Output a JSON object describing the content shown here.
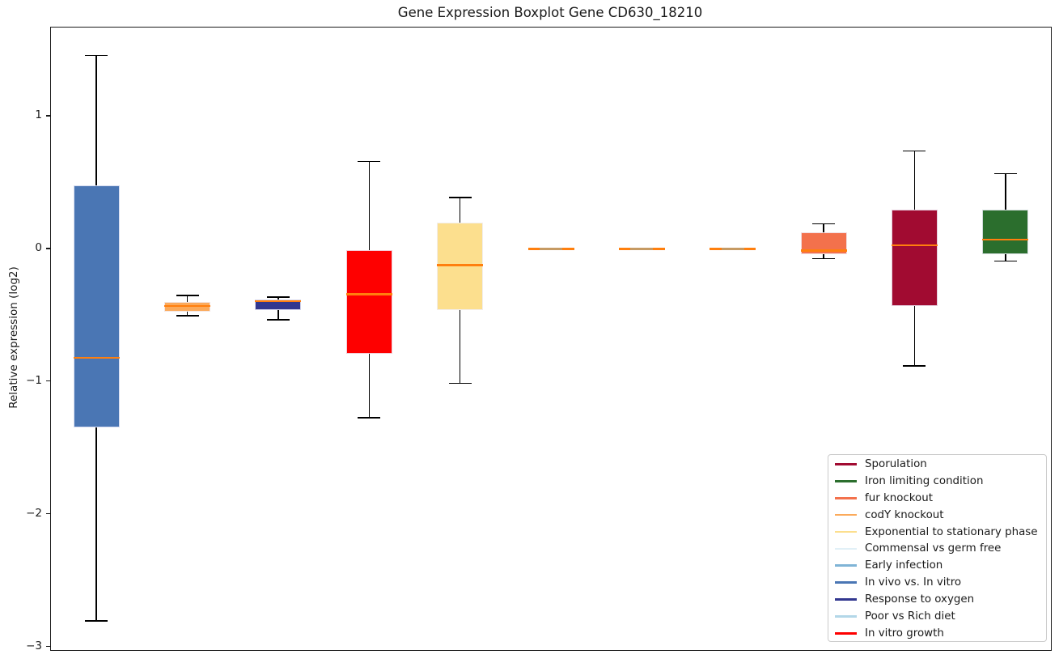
{
  "chart_data": {
    "type": "boxplot",
    "title": "Gene Expression Boxplot Gene CD630_18210",
    "ylabel": "Relative expression (log2)",
    "xlabel": "",
    "ylim": [
      -3.02,
      1.67
    ],
    "yticks": [
      {
        "value": 1,
        "label": "1"
      },
      {
        "value": 0,
        "label": "0"
      },
      {
        "value": -1,
        "label": "−1"
      },
      {
        "value": -2,
        "label": "−2"
      },
      {
        "value": -3,
        "label": "−3"
      }
    ],
    "grid": false,
    "legend_position": "lower right",
    "median_color": "#ff7f0e",
    "whisker_color": "#000000",
    "series": [
      {
        "name": "In vivo vs. In vitro",
        "color": "#4a76b4",
        "stats": {
          "whislo": -2.8,
          "q1": -1.34,
          "med": -0.82,
          "q3": 0.48,
          "whishi": 1.46
        }
      },
      {
        "name": "codY knockout",
        "color": "#fbaa5b",
        "stats": {
          "whislo": -0.5,
          "q1": -0.47,
          "med": -0.43,
          "q3": -0.4,
          "whishi": -0.35
        }
      },
      {
        "name": "Response to oxygen",
        "color": "#32378f",
        "stats": {
          "whislo": -0.53,
          "q1": -0.46,
          "med": -0.39,
          "q3": -0.38,
          "whishi": -0.36
        }
      },
      {
        "name": "In vitro growth",
        "color": "#fe0000",
        "stats": {
          "whislo": -1.27,
          "q1": -0.79,
          "med": -0.34,
          "q3": -0.01,
          "whishi": 0.66
        }
      },
      {
        "name": "Exponential to stationary phase",
        "color": "#fcdf8e",
        "stats": {
          "whislo": -1.01,
          "q1": -0.46,
          "med": -0.12,
          "q3": 0.2,
          "whishi": 0.39
        }
      },
      {
        "name": "Commensal vs germ free",
        "color": "#e1f0f7",
        "stats": {
          "whislo": -0.01,
          "q1": -0.005,
          "med": 0.0,
          "q3": 0.005,
          "whishi": 0.01
        }
      },
      {
        "name": "Early infection",
        "color": "#7fb4d6",
        "stats": {
          "whislo": -0.01,
          "q1": -0.005,
          "med": 0.0,
          "q3": 0.005,
          "whishi": 0.01
        }
      },
      {
        "name": "Poor vs Rich diet",
        "color": "#b3d7e8",
        "stats": {
          "whislo": -0.01,
          "q1": -0.005,
          "med": 0.0,
          "q3": 0.005,
          "whishi": 0.01
        }
      },
      {
        "name": "fur knockout",
        "color": "#f3714c",
        "stats": {
          "whislo": -0.07,
          "q1": -0.04,
          "med": -0.01,
          "q3": 0.13,
          "whishi": 0.19
        }
      },
      {
        "name": "Sporulation",
        "color": "#a10b31",
        "stats": {
          "whislo": -0.88,
          "q1": -0.43,
          "med": 0.03,
          "q3": 0.3,
          "whishi": 0.74
        }
      },
      {
        "name": "Iron limiting condition",
        "color": "#2b6e2d",
        "stats": {
          "whislo": -0.09,
          "q1": -0.04,
          "med": 0.07,
          "q3": 0.3,
          "whishi": 0.57
        }
      }
    ],
    "legend": [
      {
        "label": "Sporulation",
        "color": "#a10b31"
      },
      {
        "label": "Iron limiting condition",
        "color": "#2b6e2d"
      },
      {
        "label": "fur knockout",
        "color": "#f3714c"
      },
      {
        "label": "codY knockout",
        "color": "#fbaa5b"
      },
      {
        "label": "Exponential to stationary phase",
        "color": "#fcdf8e"
      },
      {
        "label": "Commensal vs germ free",
        "color": "#e1f0f7"
      },
      {
        "label": "Early infection",
        "color": "#7fb4d6"
      },
      {
        "label": "In vivo vs. In vitro",
        "color": "#4a76b4"
      },
      {
        "label": "Response to oxygen",
        "color": "#32378f"
      },
      {
        "label": "Poor vs Rich diet",
        "color": "#b3d7e8"
      },
      {
        "label": "In vitro growth",
        "color": "#fe0000"
      }
    ]
  }
}
